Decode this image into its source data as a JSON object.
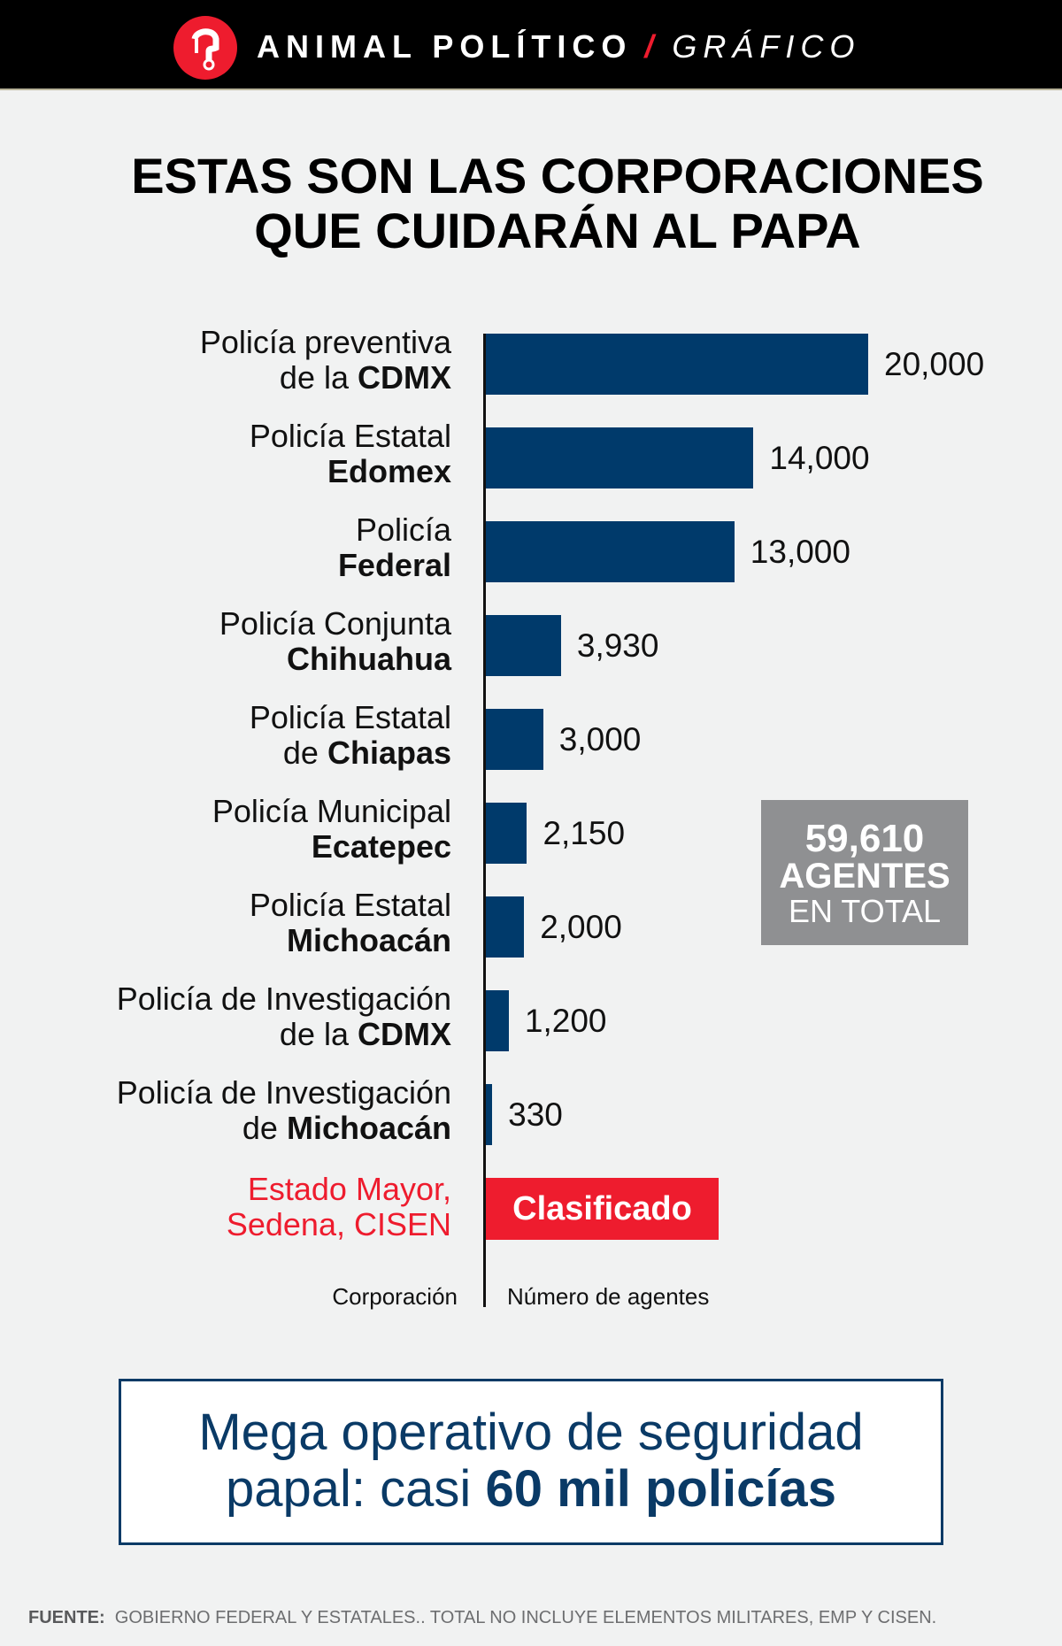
{
  "header": {
    "brand": "ANIMAL POLÍTICO",
    "slash": "/",
    "section": "GRÁFICO",
    "logo_color": "#ee1c2e"
  },
  "title": {
    "line1": "ESTAS SON LAS CORPORACIONES",
    "line2": "QUE CUIDARÁN AL PAPA"
  },
  "chart_data": {
    "type": "bar",
    "orientation": "horizontal",
    "xlabel": "Número de agentes",
    "ylabel": "Corporación",
    "bar_color": "#003a6b",
    "categories": [
      {
        "light": "Policía preventiva",
        "light2": "de la ",
        "bold": "CDMX"
      },
      {
        "light": "Policía Estatal",
        "light2": "",
        "bold": "Edomex"
      },
      {
        "light": "Policía",
        "light2": "",
        "bold": "Federal"
      },
      {
        "light": "Policía Conjunta",
        "light2": "",
        "bold": "Chihuahua"
      },
      {
        "light": "Policía Estatal",
        "light2": "de ",
        "bold": "Chiapas"
      },
      {
        "light": "Policía Municipal",
        "light2": "",
        "bold": "Ecatepec"
      },
      {
        "light": "Policía Estatal",
        "light2": "",
        "bold": "Michoacán"
      },
      {
        "light": "Policía de Investigación",
        "light2": "de la ",
        "bold": "CDMX"
      },
      {
        "light": "Policía de Investigación",
        "light2": "de ",
        "bold": "Michoacán"
      }
    ],
    "values": [
      20000,
      14000,
      13000,
      3930,
      3000,
      2150,
      2000,
      1200,
      330
    ],
    "value_labels": [
      "20,000",
      "14,000",
      "13,000",
      "3,930",
      "3,000",
      "2,150",
      "2,000",
      "1,200",
      "330"
    ],
    "classified": {
      "label_line1": "Estado Mayor,",
      "label_line2": "Sedena, CISEN",
      "value": "Clasificado",
      "color": "#ee1c2e"
    },
    "total": {
      "number": "59,610",
      "line2": "AGENTES",
      "line3": "EN TOTAL"
    }
  },
  "bottom": {
    "line1": "Mega operativo de seguridad",
    "line2a": "papal: casi ",
    "line2b": "60 mil policías"
  },
  "footer": {
    "label": "FUENTE:",
    "text": "GOBIERNO FEDERAL Y ESTATALES.. TOTAL NO INCLUYE ELEMENTOS MILITARES, EMP Y CISEN."
  }
}
